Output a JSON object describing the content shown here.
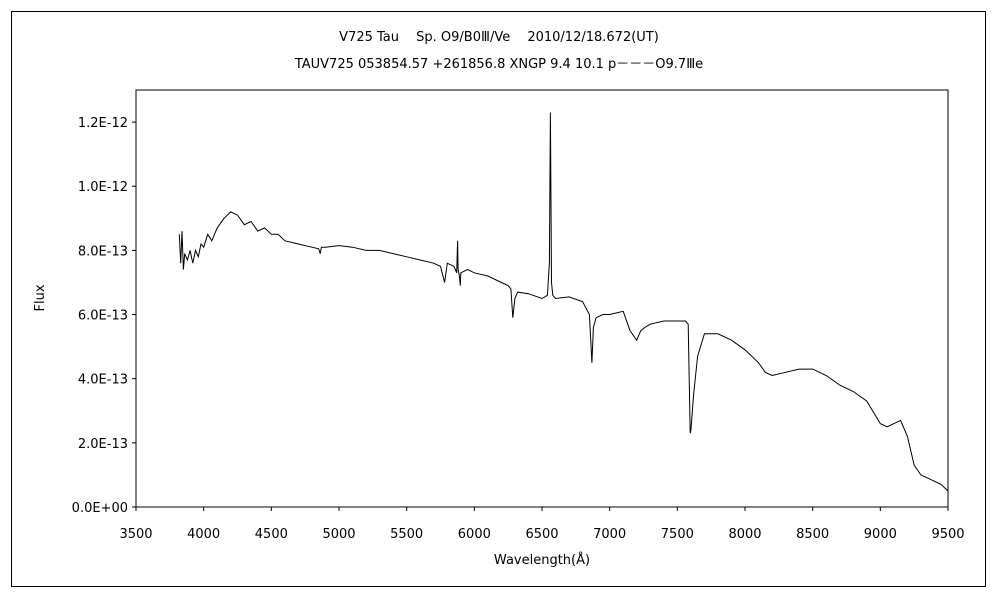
{
  "chart_data": {
    "type": "line",
    "title": "V725 Tau　 Sp. O9/B0Ⅲ/Ve　 2010/12/18.672(UT)",
    "subtitle": "TAUV725 053854.57 +261856.8 XNGP 9.4 10.1 p－－－O9.7Ⅲe",
    "xlabel": "Wavelength(Å)",
    "ylabel": "Flux",
    "xlim": [
      3500,
      9500
    ],
    "ylim": [
      0,
      1.3e-12
    ],
    "xticks": [
      3500,
      4000,
      4500,
      5000,
      5500,
      6000,
      6500,
      7000,
      7500,
      8000,
      8500,
      9000,
      9500
    ],
    "xtick_labels": [
      "3500",
      "4000",
      "4500",
      "5000",
      "5500",
      "6000",
      "6500",
      "7000",
      "7500",
      "8000",
      "8500",
      "9000",
      "9500"
    ],
    "yticks": [
      0,
      2e-13,
      4e-13,
      6e-13,
      8e-13,
      1e-12,
      1.2e-12
    ],
    "ytick_labels": [
      "0.0E+00",
      "2.0E-13",
      "4.0E-13",
      "6.0E-13",
      "8.0E-13",
      "1.0E-12",
      "1.2E-12"
    ],
    "grid": false,
    "series": [
      {
        "x": [
          3820,
          3830,
          3840,
          3850,
          3860,
          3880,
          3900,
          3920,
          3940,
          3960,
          3980,
          4000,
          4030,
          4060,
          4100,
          4150,
          4200,
          4250,
          4300,
          4350,
          4400,
          4450,
          4500,
          4550,
          4600,
          4700,
          4800,
          4850,
          4861,
          4870,
          4900,
          5000,
          5100,
          5200,
          5300,
          5400,
          5500,
          5600,
          5700,
          5750,
          5780,
          5800,
          5850,
          5870,
          5876,
          5880,
          5890,
          5896,
          5900,
          5950,
          6000,
          6100,
          6200,
          6250,
          6270,
          6284,
          6300,
          6320,
          6400,
          6500,
          6540,
          6555,
          6562,
          6570,
          6580,
          6600,
          6700,
          6800,
          6850,
          6869,
          6880,
          6900,
          6950,
          7000,
          7100,
          7150,
          7200,
          7230,
          7260,
          7300,
          7400,
          7500,
          7560,
          7580,
          7595,
          7600,
          7620,
          7650,
          7700,
          7800,
          7900,
          8000,
          8100,
          8150,
          8200,
          8300,
          8400,
          8500,
          8600,
          8700,
          8800,
          8900,
          9000,
          9050,
          9100,
          9150,
          9200,
          9250,
          9300,
          9350,
          9400,
          9450,
          9500
        ],
        "y": [
          8.5e-13,
          7.6e-13,
          8.6e-13,
          7.4e-13,
          7.9e-13,
          7.7e-13,
          8e-13,
          7.6e-13,
          8e-13,
          7.8e-13,
          8.2e-13,
          8.1e-13,
          8.5e-13,
          8.3e-13,
          8.7e-13,
          9e-13,
          9.2e-13,
          9.1e-13,
          8.8e-13,
          8.9e-13,
          8.6e-13,
          8.7e-13,
          8.5e-13,
          8.5e-13,
          8.3e-13,
          8.2e-13,
          8.1e-13,
          8.05e-13,
          7.9e-13,
          8.1e-13,
          8.1e-13,
          8.15e-13,
          8.1e-13,
          8e-13,
          8e-13,
          7.9e-13,
          7.8e-13,
          7.7e-13,
          7.6e-13,
          7.5e-13,
          7e-13,
          7.6e-13,
          7.5e-13,
          7.3e-13,
          8.3e-13,
          7.4e-13,
          7.2e-13,
          6.9e-13,
          7.3e-13,
          7.4e-13,
          7.3e-13,
          7.2e-13,
          7e-13,
          6.9e-13,
          6.8e-13,
          5.9e-13,
          6.5e-13,
          6.7e-13,
          6.65e-13,
          6.5e-13,
          6.6e-13,
          7.6e-13,
          1.23e-12,
          7e-13,
          6.6e-13,
          6.5e-13,
          6.55e-13,
          6.4e-13,
          6e-13,
          4.5e-13,
          5.6e-13,
          5.9e-13,
          6e-13,
          6e-13,
          6.1e-13,
          5.5e-13,
          5.2e-13,
          5.5e-13,
          5.6e-13,
          5.7e-13,
          5.8e-13,
          5.8e-13,
          5.8e-13,
          5.7e-13,
          2.3e-13,
          2.4e-13,
          3.5e-13,
          4.7e-13,
          5.4e-13,
          5.4e-13,
          5.2e-13,
          4.9e-13,
          4.5e-13,
          4.2e-13,
          4.1e-13,
          4.2e-13,
          4.3e-13,
          4.3e-13,
          4.1e-13,
          3.8e-13,
          3.6e-13,
          3.3e-13,
          2.6e-13,
          2.5e-13,
          2.6e-13,
          2.7e-13,
          2.2e-13,
          1.3e-13,
          1e-13,
          9e-14,
          8e-14,
          7e-14,
          5e-14
        ]
      }
    ]
  }
}
